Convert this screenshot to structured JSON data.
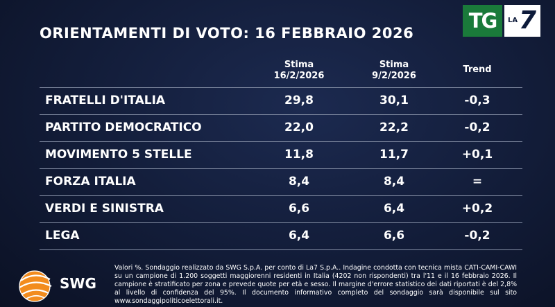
{
  "title": "ORIENTAMENTI DI VOTO: 16 FEBBRAIO 2026",
  "logo": {
    "tg": "TG",
    "la": "LA",
    "seven": "7"
  },
  "columns": {
    "col1_line1": "Stima",
    "col1_line2": "16/2/2026",
    "col2_line1": "Stima",
    "col2_line2": "9/2/2026",
    "col3": "Trend"
  },
  "rows": [
    {
      "party": "FRATELLI D'ITALIA",
      "current": "29,8",
      "previous": "30,1",
      "trend": "-0,3"
    },
    {
      "party": "PARTITO DEMOCRATICO",
      "current": "22,0",
      "previous": "22,2",
      "trend": "-0,2"
    },
    {
      "party": "MOVIMENTO 5 STELLE",
      "current": "11,8",
      "previous": "11,7",
      "trend": "+0,1"
    },
    {
      "party": "FORZA ITALIA",
      "current": "8,4",
      "previous": "8,4",
      "trend": "="
    },
    {
      "party": "VERDI E SINISTRA",
      "current": "6,6",
      "previous": "6,4",
      "trend": "+0,2"
    },
    {
      "party": "LEGA",
      "current": "6,4",
      "previous": "6,6",
      "trend": "-0,2"
    }
  ],
  "footer": {
    "brand": "SWG",
    "note": "Valori %. Sondaggio realizzato da SWG S.p.A. per conto di La7 S.p.A.. Indagine condotta con tecnica mista CATI-CAMI-CAWI su un campione di 1.200 soggetti maggiorenni residenti in Italia (4202 non rispondenti) tra l'11 e il 16 febbraio 2026. Il campione è stratificato per zona e prevede quote per età e sesso. Il margine d'errore statistico dei dati riportati è del 2,8% al livello di confidenza del 95%. Il documento informativo completo del sondaggio sarà disponibile sul sito www.sondaggipoliticoelettorali.it."
  },
  "colors": {
    "background": "#121c38",
    "tg_green": "#1a7a3a",
    "swg_orange": "#f28c1e",
    "divider": "#8892a8"
  }
}
